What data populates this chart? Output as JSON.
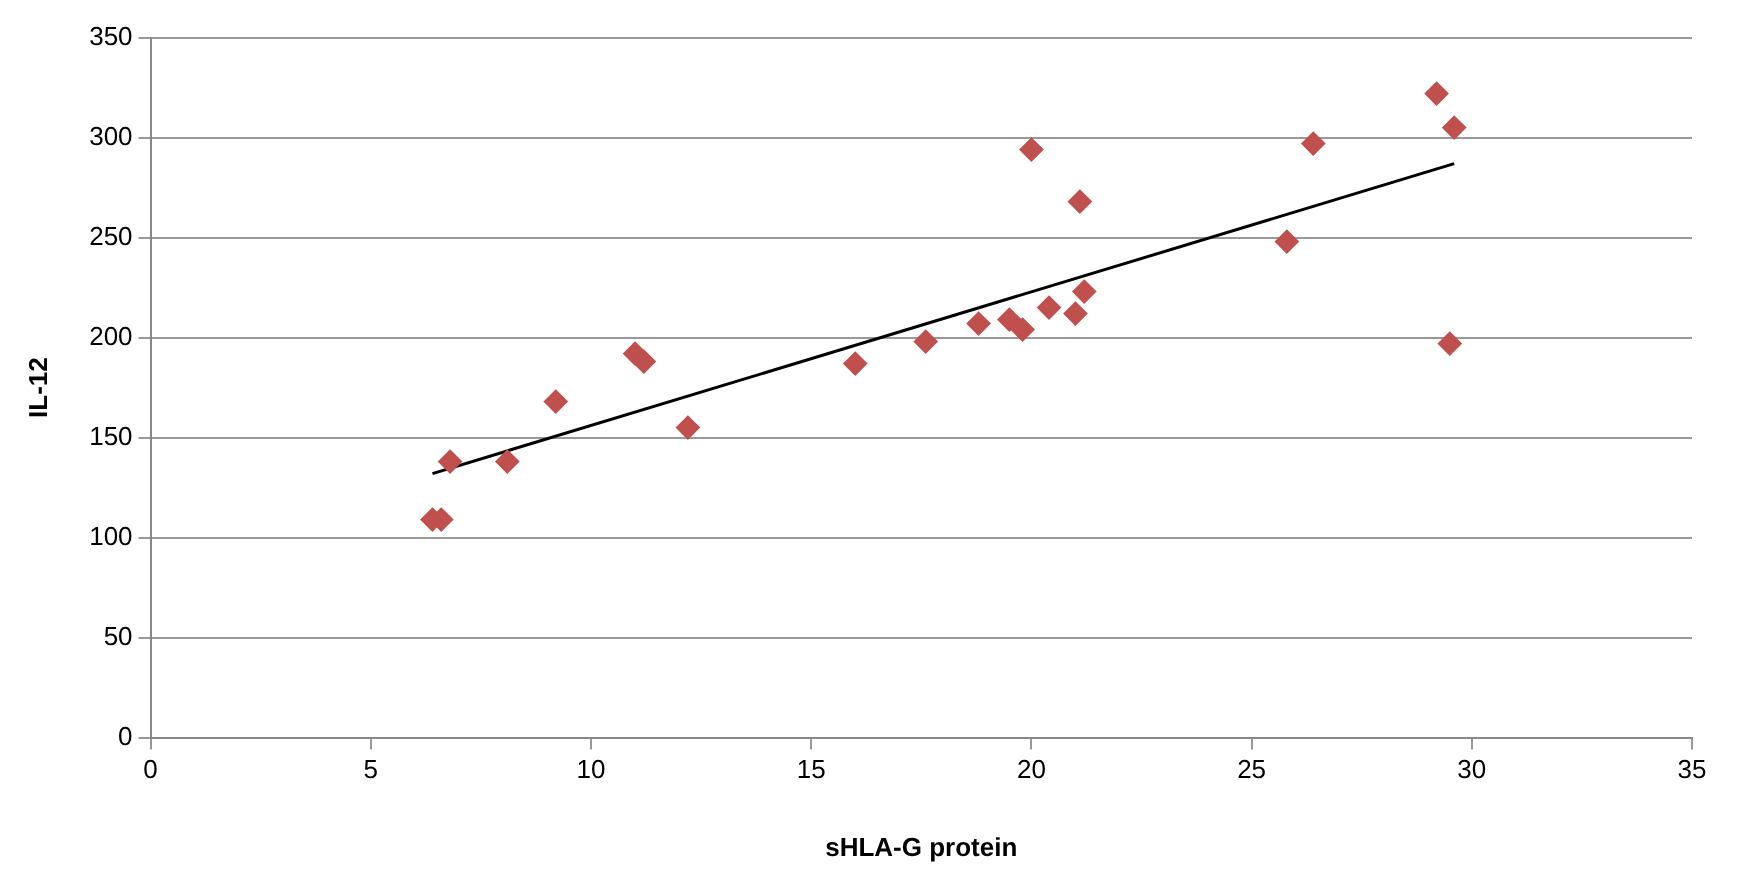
{
  "chart_data": {
    "type": "scatter",
    "xlabel": "sHLA-G protein",
    "ylabel": "IL-12",
    "xlim": [
      0,
      35
    ],
    "xticks": [
      0,
      5,
      10,
      15,
      20,
      25,
      30,
      35
    ],
    "ylim": [
      0,
      350
    ],
    "yticks": [
      0,
      50,
      100,
      150,
      200,
      250,
      300,
      350
    ],
    "grid": "y",
    "legend": false,
    "series": [
      {
        "marker": "diamond",
        "color": "#c0504d",
        "x": [
          6.4,
          6.6,
          6.8,
          8.1,
          9.2,
          11.0,
          11.2,
          12.2,
          16.0,
          17.6,
          18.8,
          19.5,
          19.8,
          20.0,
          20.4,
          21.0,
          21.1,
          21.2,
          25.8,
          26.4,
          29.2,
          29.6,
          29.5
        ],
        "values": [
          109,
          109,
          138,
          138,
          168,
          192,
          188,
          155,
          187,
          198,
          207,
          209,
          204,
          294,
          215,
          212,
          268,
          223,
          248,
          297,
          322,
          305,
          197
        ]
      },
      {
        "type": "line",
        "marker": "none",
        "color": "#000000",
        "x": [
          6.4,
          29.6
        ],
        "values": [
          132,
          287
        ]
      }
    ]
  }
}
